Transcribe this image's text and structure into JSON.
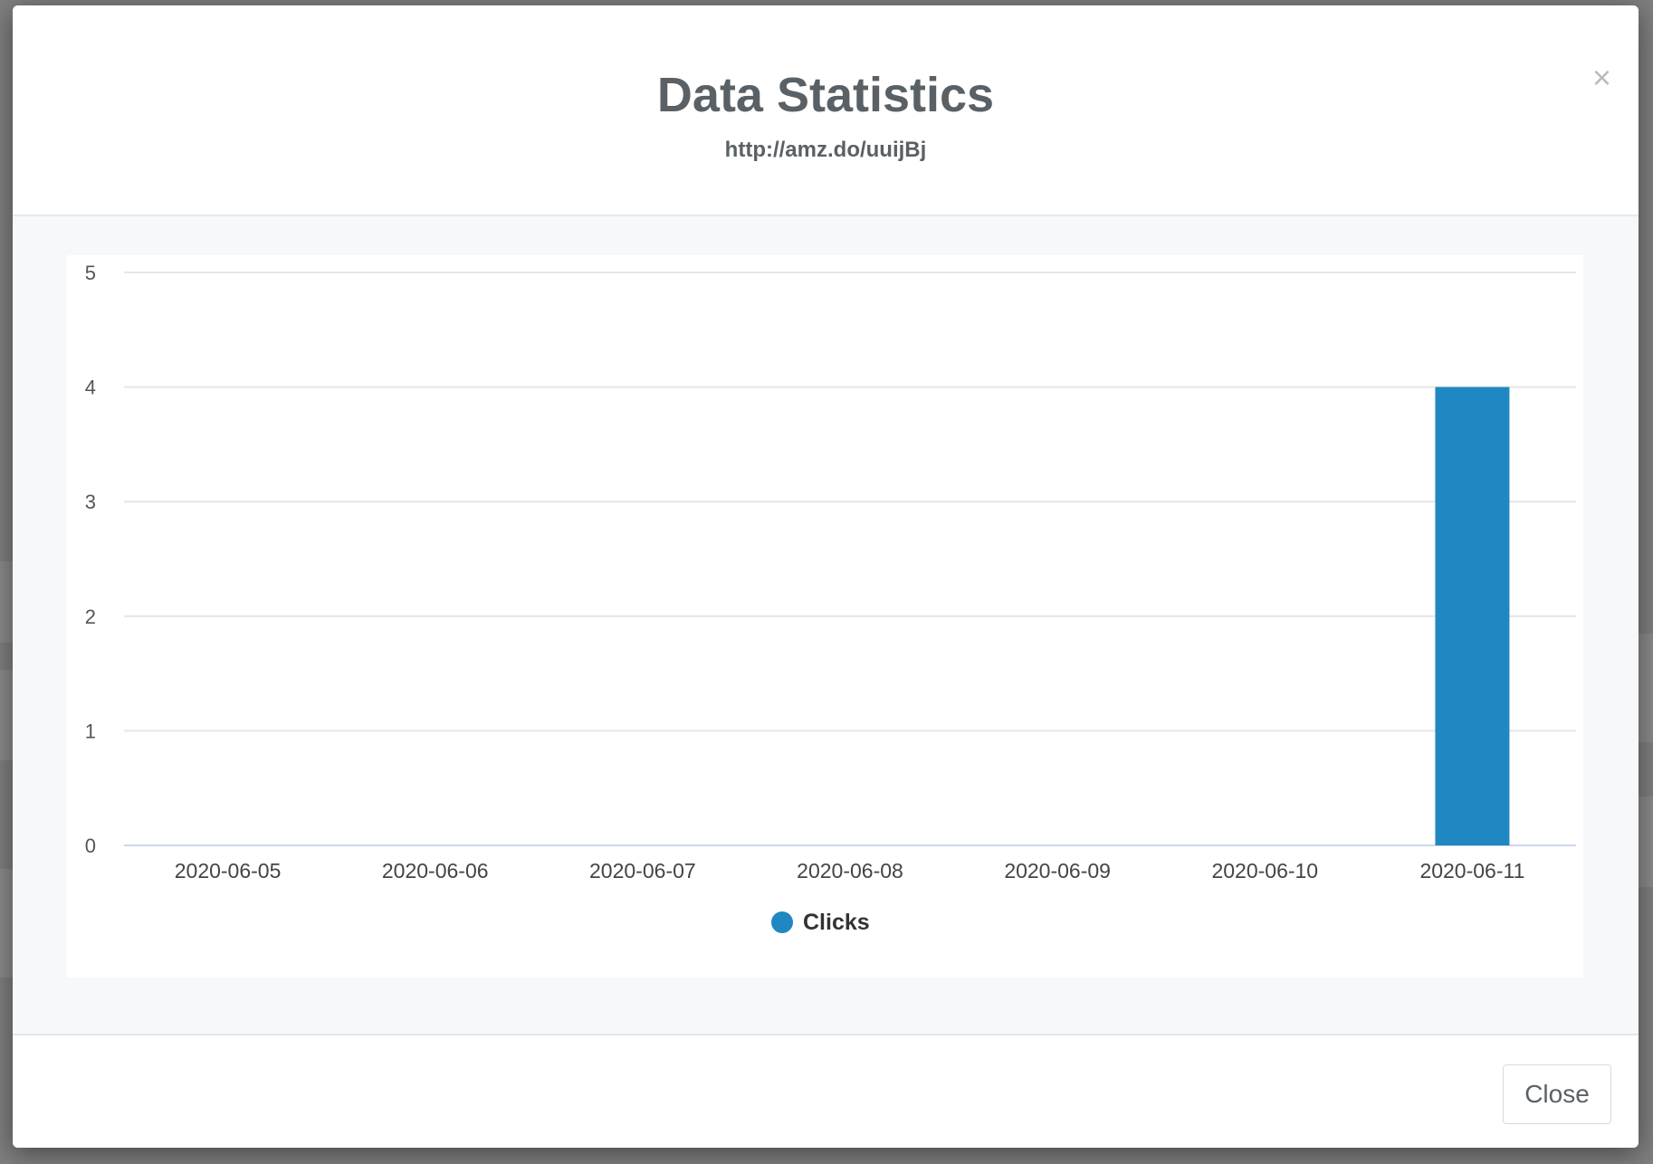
{
  "modal": {
    "title": "Data Statistics",
    "subtitle": "http://amz.do/uuijBj",
    "close_icon_glyph": "×",
    "close_button_label": "Close"
  },
  "chart_data": {
    "type": "bar",
    "categories": [
      "2020-06-05",
      "2020-06-06",
      "2020-06-07",
      "2020-06-08",
      "2020-06-09",
      "2020-06-10",
      "2020-06-11"
    ],
    "series": [
      {
        "name": "Clicks",
        "values": [
          0,
          0,
          0,
          0,
          0,
          0,
          4
        ],
        "color": "#1f88c2"
      }
    ],
    "yticks": [
      "0",
      "1",
      "2",
      "3",
      "4",
      "5"
    ],
    "ylim": [
      0,
      5
    ],
    "grid": true,
    "legend": "bottom-center"
  },
  "colors": {
    "bar": "#1f88c2",
    "grid": "#e6e6e6",
    "axis": "#ccd6eb"
  }
}
